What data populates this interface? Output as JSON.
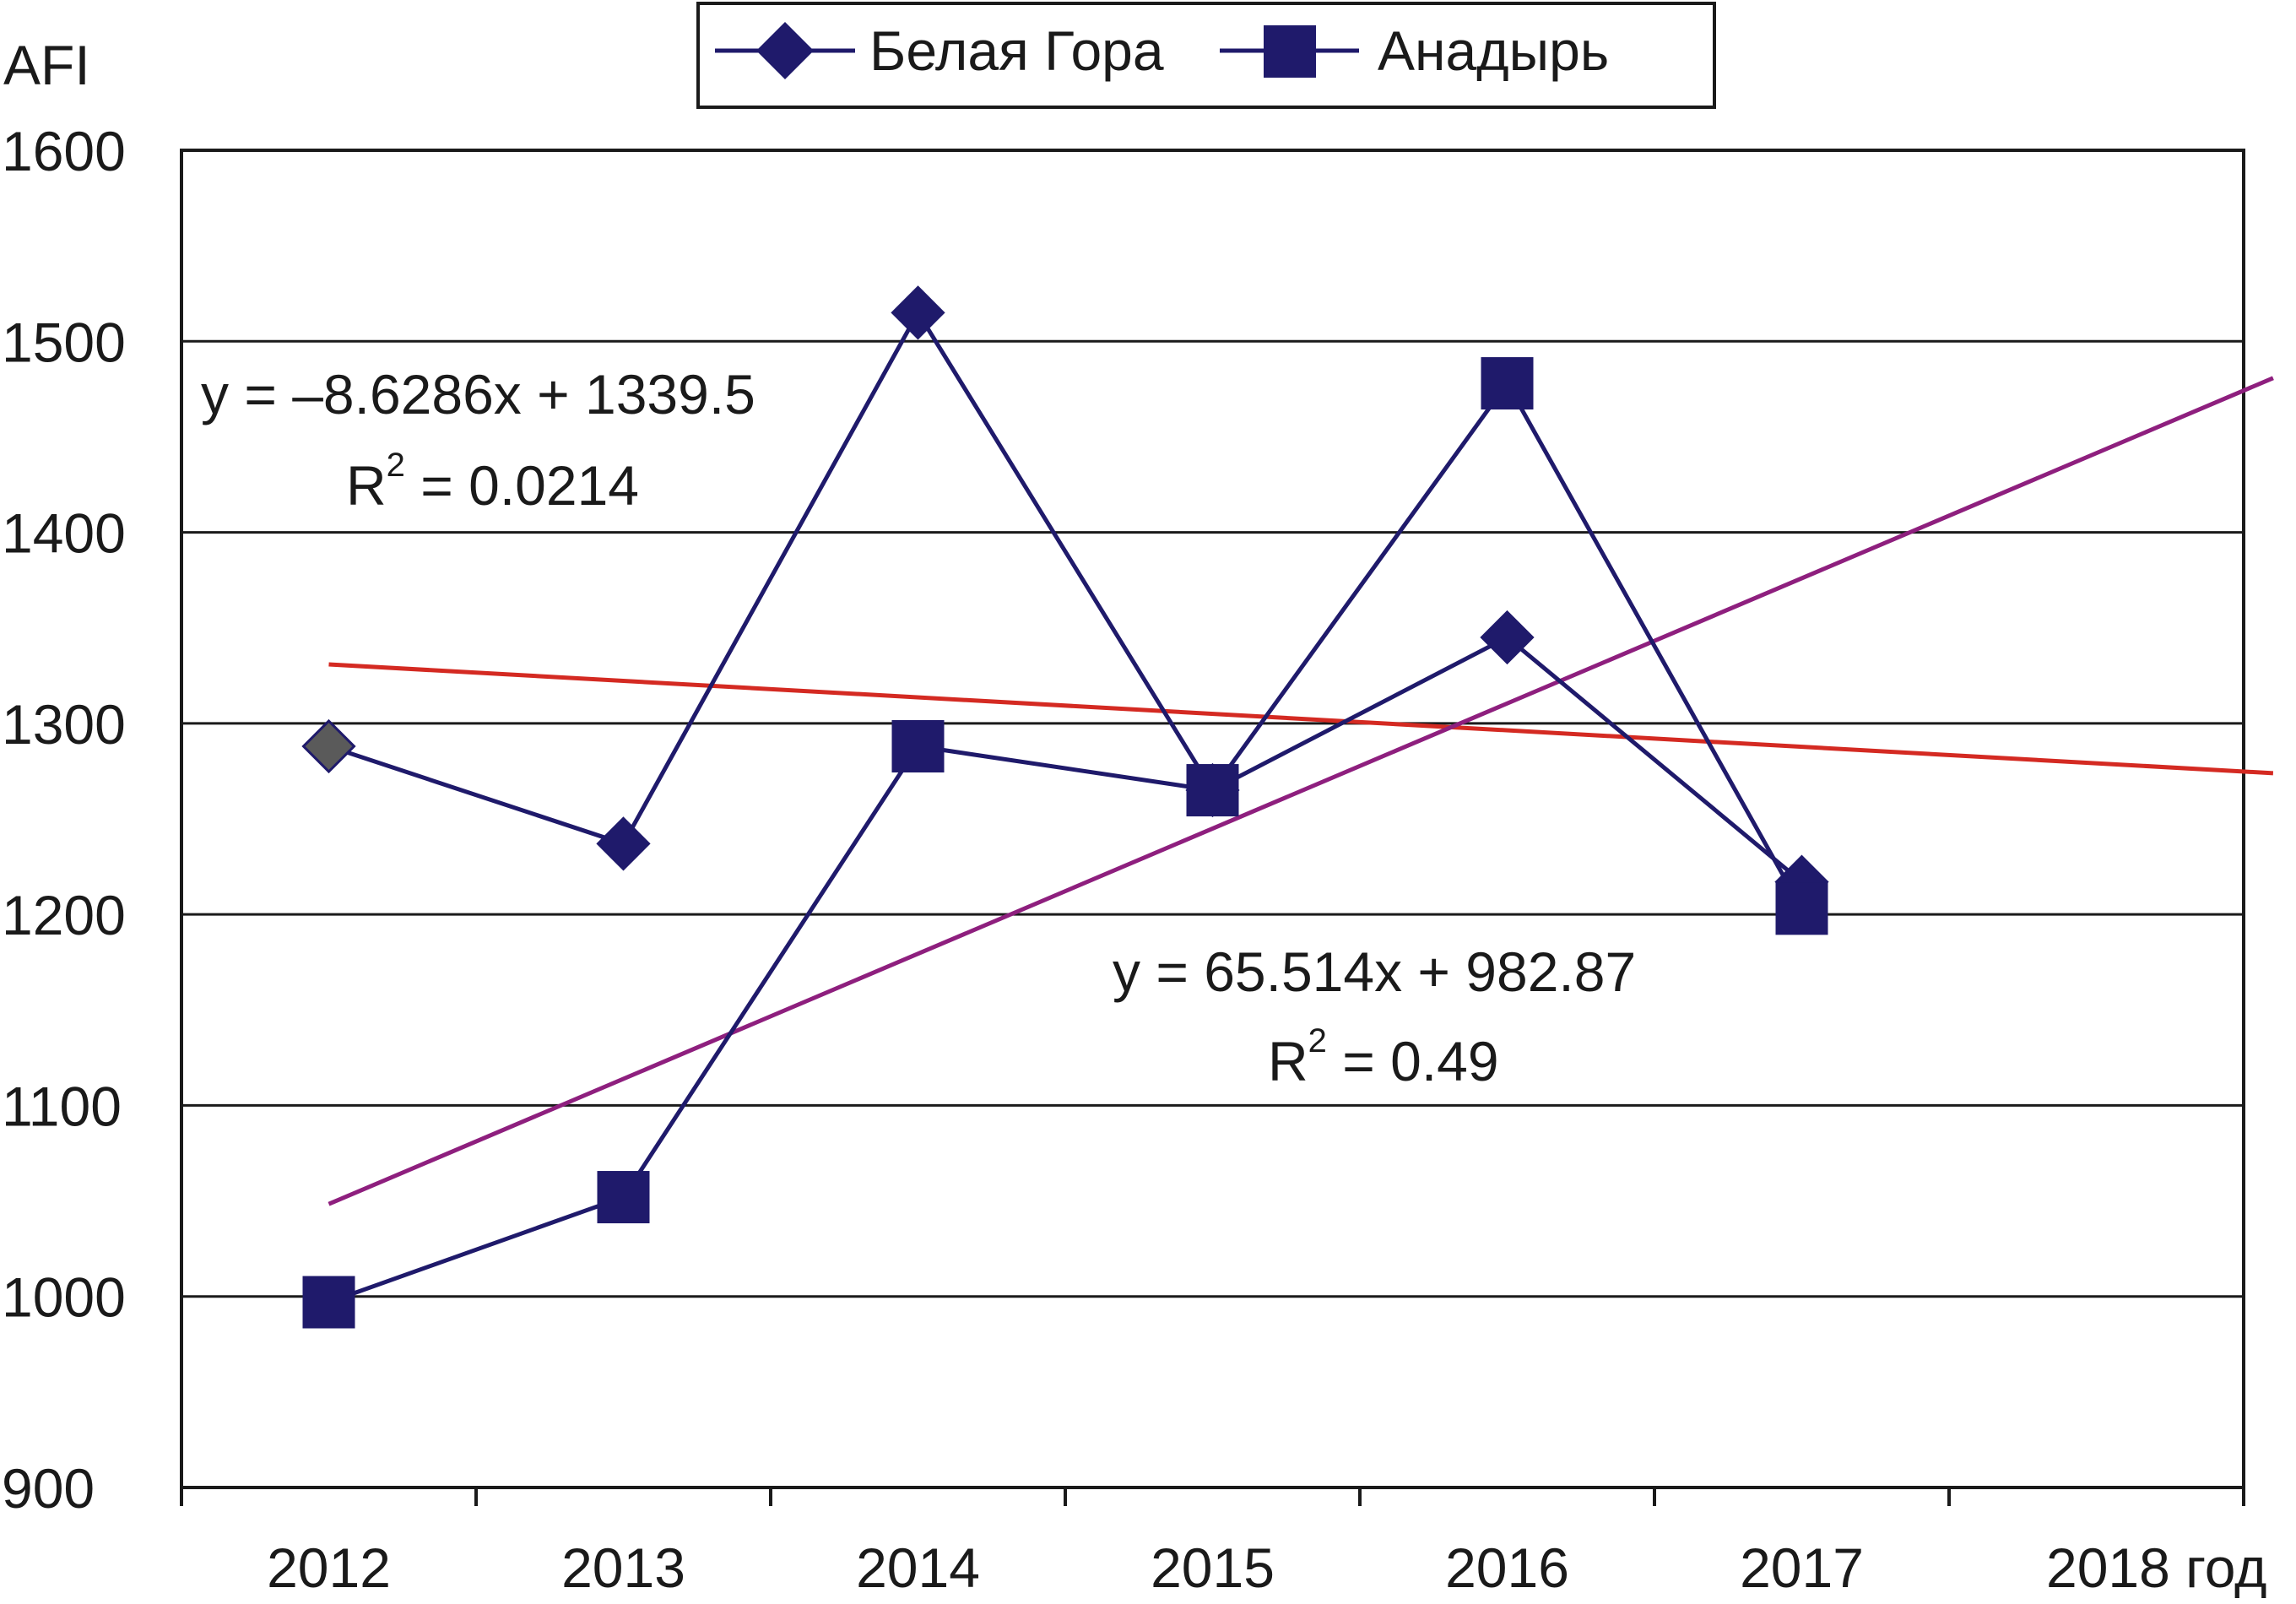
{
  "chart_data": {
    "type": "line",
    "title": "",
    "ylabel": "AFI",
    "xlabel": "год",
    "ylim": [
      900,
      1600
    ],
    "yticks": [
      900,
      1000,
      1100,
      1200,
      1300,
      1400,
      1500,
      1600
    ],
    "xlim": [
      2012,
      2019
    ],
    "categories": [
      "2012",
      "2013",
      "2014",
      "2015",
      "2016",
      "2017",
      "2018 год"
    ],
    "x": [
      2012,
      2013,
      2014,
      2015,
      2016,
      2017
    ],
    "series": [
      {
        "name": "Белая Гора",
        "marker": "diamond",
        "color": "#1f1a6b",
        "values": [
          1288,
          1237,
          1515,
          1265,
          1345,
          1217
        ]
      },
      {
        "name": "Анадырь",
        "marker": "square",
        "color": "#1f1a6b",
        "values": [
          997,
          1052,
          1288,
          1265,
          1478,
          1203
        ]
      }
    ],
    "trendlines": [
      {
        "series": "Белая Гора",
        "color": "#d42a22",
        "slope": -8.6286,
        "intercept": 1339.5,
        "x_range": [
          2012,
          2018.6
        ],
        "equation": "y = –8.6286x + 1339.5",
        "r2_label": "R",
        "r2_sup": "2",
        "r2_value": " = 0.0214"
      },
      {
        "series": "Анадырь",
        "color": "#8e1f7e",
        "slope": 65.514,
        "intercept": 982.87,
        "x_range": [
          2012,
          2018.6
        ],
        "equation": "y = 65.514x + 982.87",
        "r2_label": "R",
        "r2_sup": "2",
        "r2_value": " = 0.49"
      }
    ],
    "grid": true,
    "legend_position": "top-center"
  }
}
